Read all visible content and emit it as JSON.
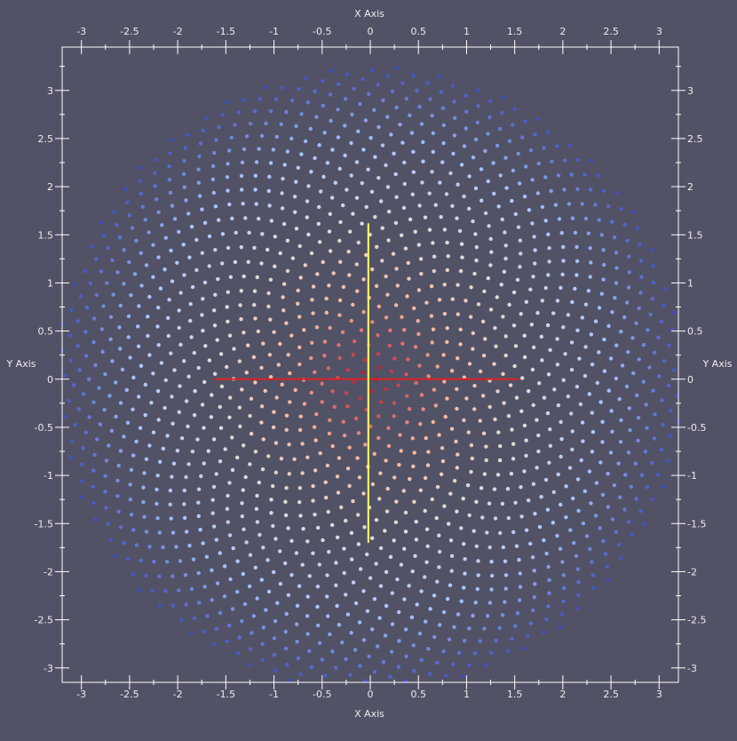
{
  "chart_data": {
    "type": "scatter",
    "title": "",
    "xlabel": "X Axis",
    "ylabel": "Y Axis",
    "xlim": [
      -3.2,
      3.2
    ],
    "ylim": [
      -3.15,
      3.45
    ],
    "xticks": [
      -3,
      -2.5,
      -2,
      -1.5,
      -1,
      -0.5,
      0,
      0.5,
      1,
      1.5,
      2,
      2.5,
      3
    ],
    "yticks": [
      -3,
      -2.5,
      -2,
      -1.5,
      -1,
      -0.5,
      0,
      0.5,
      1,
      1.5,
      2,
      2.5,
      3
    ],
    "xtick_labels": [
      "-3",
      "-2.5",
      "-2",
      "-1.5",
      "-1",
      "-0.5",
      "0",
      "0.5",
      "1",
      "1.5",
      "2",
      "2.5",
      "3"
    ],
    "ytick_labels": [
      "-3",
      "-2.5",
      "-2",
      "-1.5",
      "-1",
      "-0.5",
      "0",
      "0.5",
      "1",
      "1.5",
      "2",
      "2.5",
      "3"
    ],
    "grid": false,
    "colormap": [
      "#3b4cc0",
      "#aac7fd",
      "#dddddd",
      "#f7b89c",
      "#b40426"
    ],
    "points": {
      "count": 1600,
      "arrangement": "sunflower spiral",
      "max_radius": 3.25,
      "color_by": "distance from origin",
      "color_range": [
        0,
        3.25
      ]
    },
    "lines": [
      {
        "color": "#dd2222",
        "x": [
          -1.62,
          1.55
        ],
        "y": [
          0,
          0
        ]
      },
      {
        "color": "#ffff66",
        "x": [
          -0.02,
          -0.02
        ],
        "y": [
          -1.7,
          1.62
        ]
      }
    ]
  },
  "colors": {
    "background": "#525266",
    "axes": "#ffffff",
    "text": "#ececec"
  }
}
